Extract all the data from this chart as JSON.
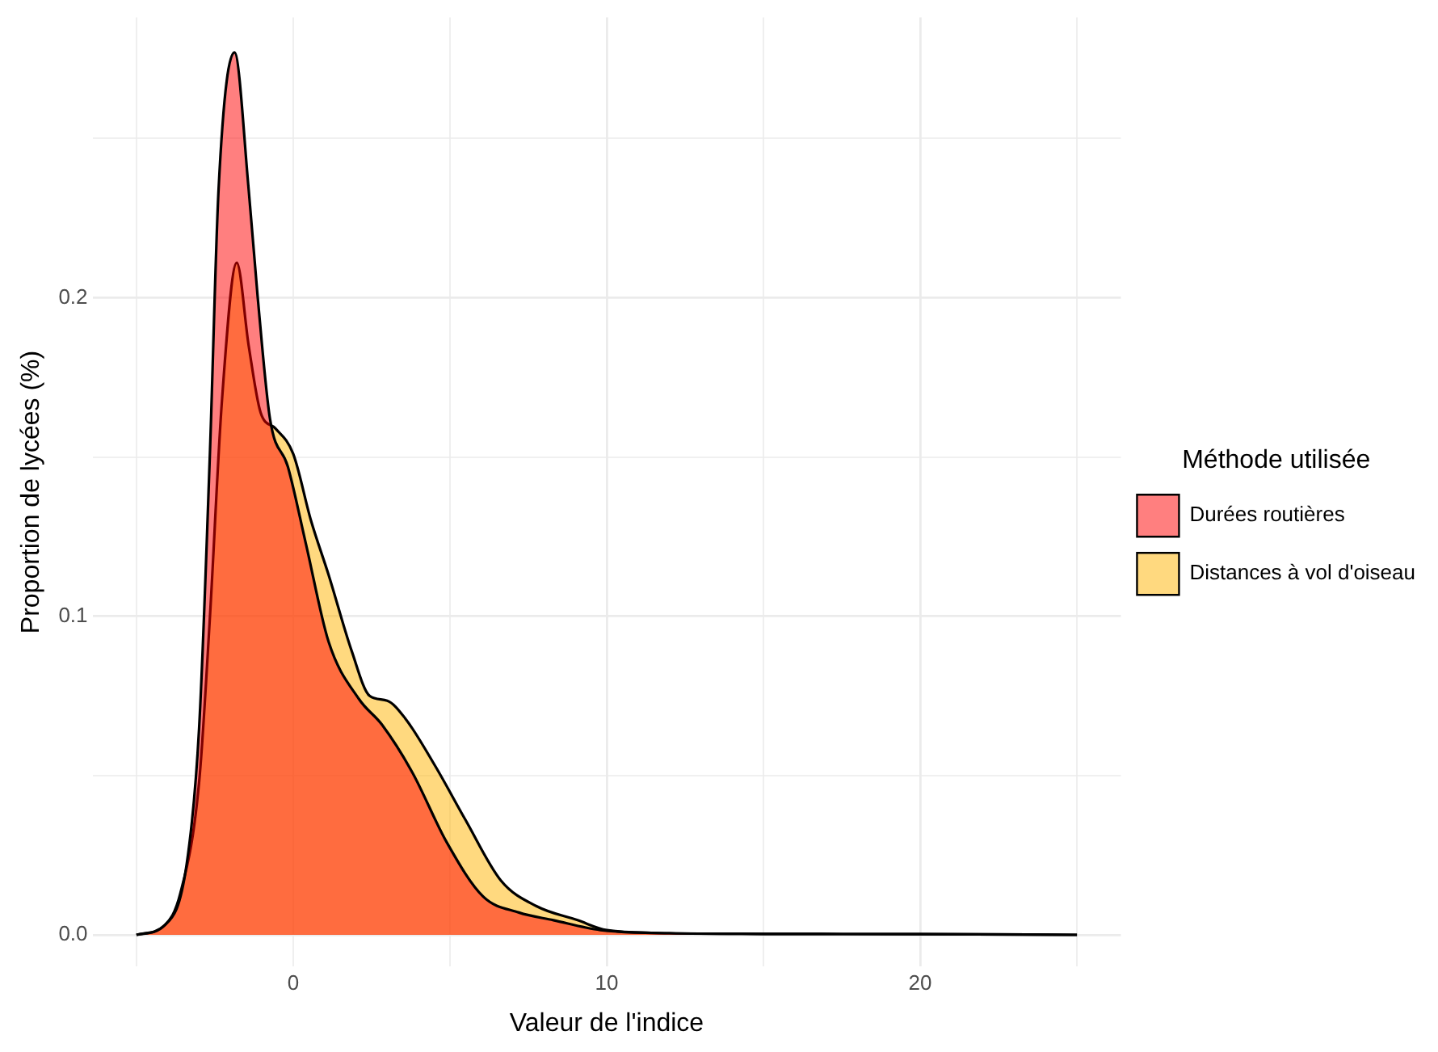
{
  "chart_data": {
    "type": "area",
    "xlabel": "Valeur de l'indice",
    "ylabel": "Proportion de lycées (%)",
    "legend_title": "Méthode utilisée",
    "legend": "right",
    "grid": true,
    "xlim": [
      -6.4,
      26.4
    ],
    "ylim": [
      -0.01,
      0.288
    ],
    "xticks": [
      {
        "value": -5,
        "label": null
      },
      0,
      {
        "value": 5,
        "label": null
      },
      10,
      {
        "value": 15,
        "label": null
      },
      20,
      {
        "value": 25,
        "label": null
      }
    ],
    "yticks": [
      {
        "value": 0,
        "label": "0.0"
      },
      {
        "value": 0.05,
        "label": null
      },
      0.1,
      {
        "value": 0.15,
        "label": null
      },
      0.2,
      {
        "value": 0.25,
        "label": null
      }
    ],
    "series": [
      {
        "name": "Durées routières",
        "color": "#ff0000",
        "x": [
          -5,
          -4.1,
          -3.4,
          -3.0,
          -2.66,
          -2.38,
          -1.87,
          -1.42,
          -1.13,
          -0.74,
          -0.17,
          0.4,
          1.13,
          2.1,
          2.83,
          3.8,
          4.9,
          6.06,
          7.2,
          8.3,
          9.8,
          12,
          15,
          20,
          25
        ],
        "values": [
          0,
          0.003,
          0.022,
          0.065,
          0.15,
          0.234,
          0.277,
          0.234,
          0.2,
          0.162,
          0.147,
          0.123,
          0.092,
          0.074,
          0.066,
          0.051,
          0.029,
          0.012,
          0.007,
          0.0046,
          0.0015,
          0.0005,
          0.0003,
          0.0002,
          0
        ]
      },
      {
        "name": "Distances à vol d'oiseau",
        "color": "#ffb400",
        "x": [
          -5,
          -4.1,
          -3.6,
          -3.0,
          -2.66,
          -2.27,
          -1.8,
          -1.42,
          -1.04,
          -0.57,
          0,
          0.57,
          1.13,
          1.87,
          2.44,
          3.0,
          3.57,
          4.53,
          5.5,
          6.63,
          7.76,
          9.07,
          10,
          12,
          15,
          20,
          25
        ],
        "values": [
          0,
          0.003,
          0.013,
          0.048,
          0.099,
          0.168,
          0.211,
          0.185,
          0.164,
          0.159,
          0.151,
          0.13,
          0.113,
          0.089,
          0.075,
          0.0735,
          0.068,
          0.053,
          0.036,
          0.017,
          0.009,
          0.0046,
          0.0015,
          0.0005,
          0.0003,
          0.0002,
          0
        ]
      }
    ]
  }
}
